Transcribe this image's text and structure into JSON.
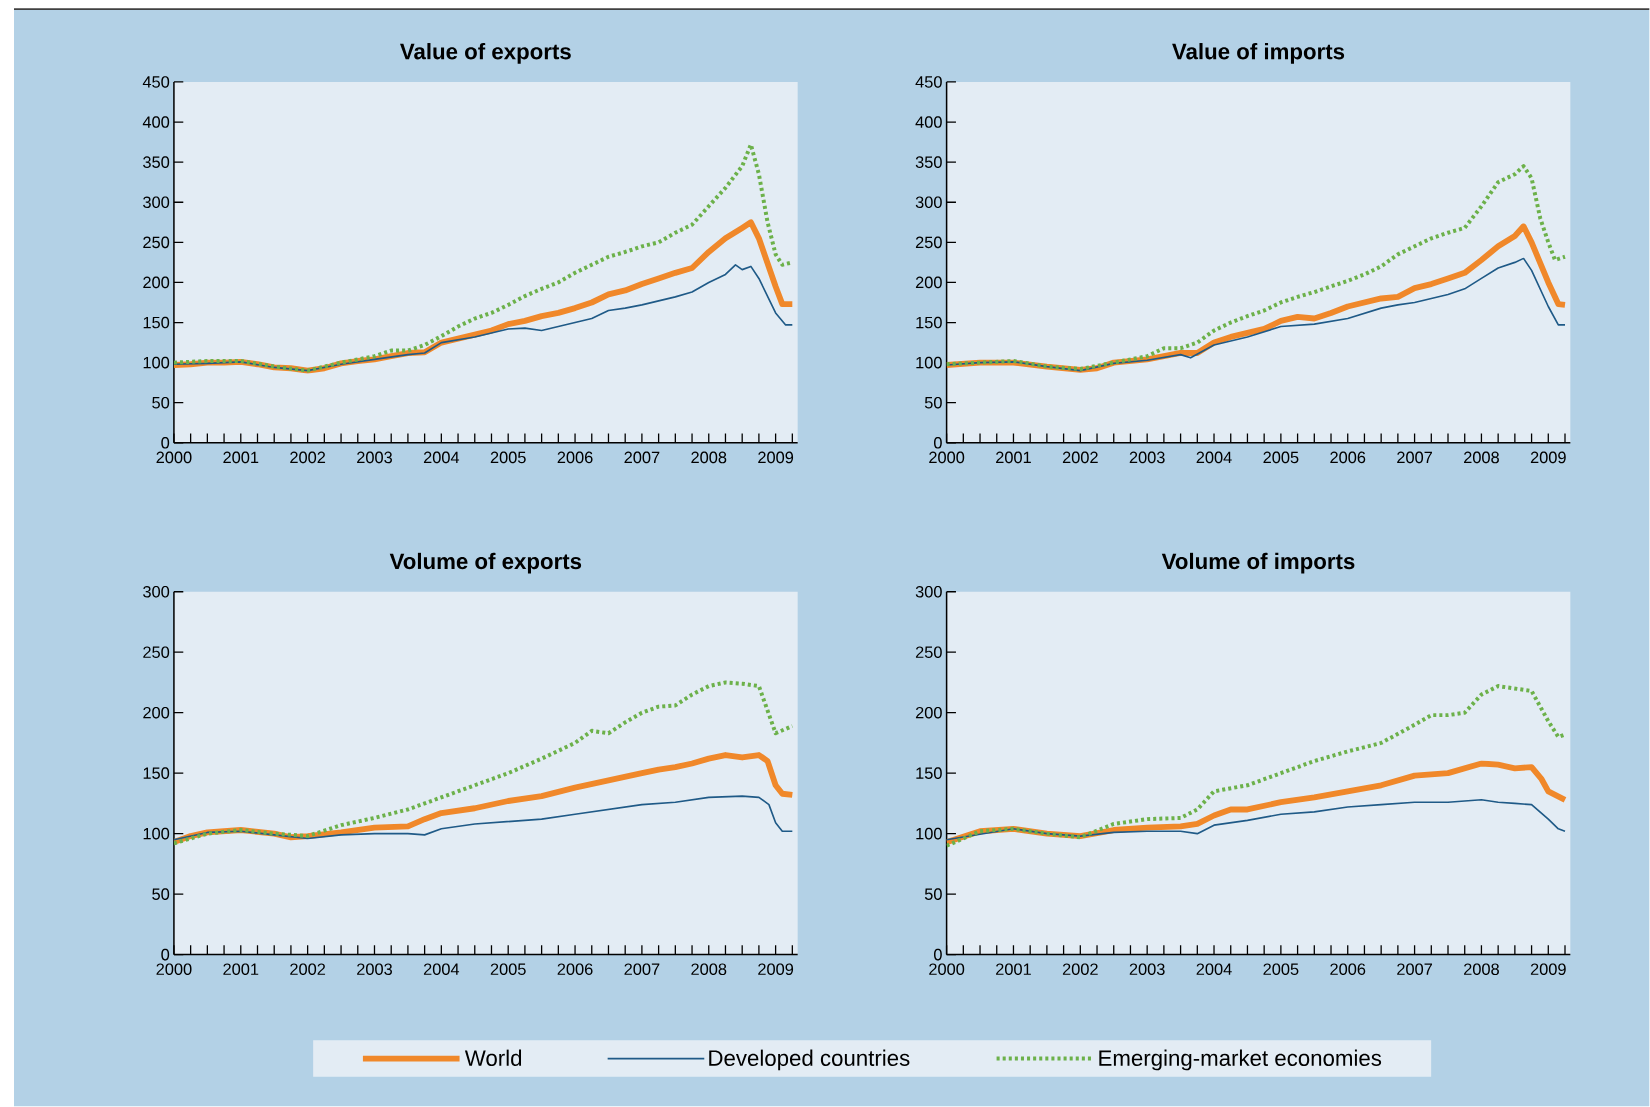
{
  "chart_data": [
    {
      "type": "line",
      "title": "Value of exports",
      "legend": "bottom",
      "xlim": [
        2000,
        2009.33
      ],
      "ylim": [
        0,
        450
      ],
      "yticks": [
        0,
        50,
        100,
        150,
        200,
        250,
        300,
        350,
        400,
        450
      ],
      "xticks": [
        2000,
        {
          "value": 2000.25,
          "label": null
        },
        {
          "value": 2000.5,
          "label": null
        },
        {
          "value": 2000.75,
          "label": null
        },
        2001,
        {
          "value": 2001.25,
          "label": null
        },
        {
          "value": 2001.5,
          "label": null
        },
        {
          "value": 2001.75,
          "label": null
        },
        2002,
        {
          "value": 2002.25,
          "label": null
        },
        {
          "value": 2002.5,
          "label": null
        },
        {
          "value": 2002.75,
          "label": null
        },
        2003,
        {
          "value": 2003.25,
          "label": null
        },
        {
          "value": 2003.5,
          "label": null
        },
        {
          "value": 2003.75,
          "label": null
        },
        2004,
        {
          "value": 2004.25,
          "label": null
        },
        {
          "value": 2004.5,
          "label": null
        },
        {
          "value": 2004.75,
          "label": null
        },
        2005,
        {
          "value": 2005.25,
          "label": null
        },
        {
          "value": 2005.5,
          "label": null
        },
        {
          "value": 2005.75,
          "label": null
        },
        2006,
        {
          "value": 2006.25,
          "label": null
        },
        {
          "value": 2006.5,
          "label": null
        },
        {
          "value": 2006.75,
          "label": null
        },
        2007,
        {
          "value": 2007.25,
          "label": null
        },
        {
          "value": 2007.5,
          "label": null
        },
        {
          "value": 2007.75,
          "label": null
        },
        2008,
        {
          "value": 2008.25,
          "label": null
        },
        {
          "value": 2008.5,
          "label": null
        },
        {
          "value": 2008.75,
          "label": null
        },
        2009,
        {
          "value": 2009.25,
          "label": null
        }
      ],
      "series": [
        {
          "name": "World",
          "color": "#f0882a",
          "line_style": "solid",
          "x": [
            2000,
            2000.25,
            2000.5,
            2000.75,
            2001,
            2001.25,
            2001.5,
            2001.75,
            2002,
            2002.25,
            2002.5,
            2002.75,
            2003,
            2003.25,
            2003.5,
            2003.75,
            2004,
            2004.25,
            2004.5,
            2004.75,
            2005,
            2005.25,
            2005.5,
            2005.75,
            2006,
            2006.25,
            2006.5,
            2006.75,
            2007,
            2007.25,
            2007.5,
            2007.75,
            2008,
            2008.25,
            2008.5,
            2008.63,
            2008.75,
            2009,
            2009.1,
            2009.25
          ],
          "values": [
            97,
            98,
            100,
            100,
            101,
            98,
            94,
            93,
            90,
            93,
            99,
            102,
            104,
            108,
            112,
            113,
            125,
            130,
            135,
            140,
            148,
            152,
            158,
            162,
            168,
            175,
            185,
            190,
            198,
            205,
            212,
            218,
            238,
            255,
            268,
            275,
            255,
            195,
            173,
            173
          ]
        },
        {
          "name": "Developed countries",
          "color": "#1f5a87",
          "line_style": "solid",
          "x": [
            2000,
            2000.5,
            2001,
            2001.5,
            2002,
            2002.5,
            2003,
            2003.5,
            2003.75,
            2004,
            2004.5,
            2005,
            2005.25,
            2005.5,
            2005.75,
            2006,
            2006.25,
            2006.5,
            2006.75,
            2007,
            2007.25,
            2007.5,
            2007.75,
            2008,
            2008.25,
            2008.4,
            2008.5,
            2008.63,
            2008.75,
            2009,
            2009.15,
            2009.25
          ],
          "values": [
            98,
            99,
            101,
            94,
            90,
            98,
            104,
            110,
            112,
            125,
            132,
            142,
            143,
            140,
            145,
            150,
            155,
            165,
            168,
            172,
            177,
            182,
            188,
            200,
            210,
            222,
            216,
            220,
            205,
            162,
            147,
            147
          ]
        },
        {
          "name": "Emerging-market economies",
          "color": "#6cb14a",
          "line_style": "dotted",
          "x": [
            2000,
            2000.5,
            2001,
            2001.5,
            2002,
            2002.5,
            2003,
            2003.25,
            2003.5,
            2003.75,
            2004,
            2004.25,
            2004.5,
            2004.75,
            2005,
            2005.25,
            2005.5,
            2005.75,
            2006,
            2006.25,
            2006.5,
            2006.75,
            2007,
            2007.25,
            2007.5,
            2007.75,
            2008,
            2008.25,
            2008.5,
            2008.63,
            2008.75,
            2008.88,
            2009,
            2009.1,
            2009.25
          ],
          "values": [
            100,
            102,
            102,
            95,
            90,
            100,
            108,
            115,
            115,
            122,
            133,
            145,
            155,
            162,
            172,
            183,
            192,
            200,
            212,
            222,
            232,
            238,
            245,
            250,
            262,
            272,
            295,
            318,
            345,
            372,
            335,
            275,
            235,
            222,
            225
          ]
        }
      ]
    },
    {
      "type": "line",
      "title": "Value of imports",
      "xlim": [
        2000,
        2009.33
      ],
      "ylim": [
        0,
        450
      ],
      "yticks": [
        0,
        50,
        100,
        150,
        200,
        250,
        300,
        350,
        400,
        450
      ],
      "xticks": [
        2000,
        {
          "value": 2000.25,
          "label": null
        },
        {
          "value": 2000.5,
          "label": null
        },
        {
          "value": 2000.75,
          "label": null
        },
        2001,
        {
          "value": 2001.25,
          "label": null
        },
        {
          "value": 2001.5,
          "label": null
        },
        {
          "value": 2001.75,
          "label": null
        },
        2002,
        {
          "value": 2002.25,
          "label": null
        },
        {
          "value": 2002.5,
          "label": null
        },
        {
          "value": 2002.75,
          "label": null
        },
        2003,
        {
          "value": 2003.25,
          "label": null
        },
        {
          "value": 2003.5,
          "label": null
        },
        {
          "value": 2003.75,
          "label": null
        },
        2004,
        {
          "value": 2004.25,
          "label": null
        },
        {
          "value": 2004.5,
          "label": null
        },
        {
          "value": 2004.75,
          "label": null
        },
        2005,
        {
          "value": 2005.25,
          "label": null
        },
        {
          "value": 2005.5,
          "label": null
        },
        {
          "value": 2005.75,
          "label": null
        },
        2006,
        {
          "value": 2006.25,
          "label": null
        },
        {
          "value": 2006.5,
          "label": null
        },
        {
          "value": 2006.75,
          "label": null
        },
        2007,
        {
          "value": 2007.25,
          "label": null
        },
        {
          "value": 2007.5,
          "label": null
        },
        {
          "value": 2007.75,
          "label": null
        },
        2008,
        {
          "value": 2008.25,
          "label": null
        },
        {
          "value": 2008.5,
          "label": null
        },
        {
          "value": 2008.75,
          "label": null
        },
        2009,
        {
          "value": 2009.25,
          "label": null
        }
      ],
      "series": [
        {
          "color": "#f0882a",
          "line_style": "solid",
          "x": [
            2000,
            2000.5,
            2001,
            2001.5,
            2002,
            2002.25,
            2002.5,
            2003,
            2003.5,
            2003.75,
            2004,
            2004.25,
            2004.5,
            2004.75,
            2005,
            2005.25,
            2005.5,
            2005.75,
            2006,
            2006.25,
            2006.5,
            2006.75,
            2007,
            2007.25,
            2007.5,
            2007.75,
            2008,
            2008.25,
            2008.5,
            2008.63,
            2008.75,
            2009,
            2009.15,
            2009.25
          ],
          "values": [
            97,
            100,
            100,
            95,
            91,
            93,
            100,
            104,
            112,
            112,
            125,
            132,
            137,
            142,
            152,
            157,
            155,
            162,
            170,
            175,
            180,
            182,
            193,
            198,
            205,
            212,
            228,
            245,
            258,
            270,
            250,
            200,
            173,
            172
          ]
        },
        {
          "color": "#1f5a87",
          "line_style": "solid",
          "x": [
            2000,
            2000.5,
            2001,
            2001.5,
            2002,
            2002.5,
            2003,
            2003.5,
            2003.65,
            2004,
            2004.5,
            2005,
            2005.5,
            2006,
            2006.5,
            2006.75,
            2007,
            2007.5,
            2007.75,
            2008,
            2008.25,
            2008.5,
            2008.63,
            2008.75,
            2009,
            2009.15,
            2009.25
          ],
          "values": [
            97,
            100,
            101,
            95,
            90,
            99,
            103,
            110,
            106,
            122,
            132,
            145,
            148,
            155,
            168,
            172,
            175,
            185,
            192,
            205,
            218,
            225,
            230,
            215,
            170,
            147,
            147
          ]
        },
        {
          "color": "#6cb14a",
          "line_style": "dotted",
          "x": [
            2000,
            2001,
            2001.5,
            2002,
            2002.5,
            2003,
            2003.25,
            2003.5,
            2003.75,
            2004,
            2004.25,
            2004.5,
            2004.75,
            2005,
            2005.25,
            2005.5,
            2005.75,
            2006,
            2006.25,
            2006.5,
            2006.75,
            2007,
            2007.25,
            2007.5,
            2007.75,
            2008,
            2008.25,
            2008.5,
            2008.63,
            2008.75,
            2008.88,
            2009,
            2009.1,
            2009.25
          ],
          "values": [
            98,
            102,
            95,
            92,
            100,
            108,
            118,
            118,
            125,
            140,
            150,
            158,
            165,
            175,
            182,
            188,
            195,
            202,
            210,
            220,
            235,
            245,
            255,
            262,
            268,
            295,
            325,
            335,
            345,
            330,
            280,
            250,
            228,
            232
          ]
        }
      ]
    },
    {
      "type": "line",
      "title": "Volume of exports",
      "xlim": [
        2000,
        2009.33
      ],
      "ylim": [
        0,
        300
      ],
      "yticks": [
        0,
        50,
        100,
        150,
        200,
        250,
        300
      ],
      "xticks": [
        2000,
        {
          "value": 2000.25,
          "label": null
        },
        {
          "value": 2000.5,
          "label": null
        },
        {
          "value": 2000.75,
          "label": null
        },
        2001,
        {
          "value": 2001.25,
          "label": null
        },
        {
          "value": 2001.5,
          "label": null
        },
        {
          "value": 2001.75,
          "label": null
        },
        2002,
        {
          "value": 2002.25,
          "label": null
        },
        {
          "value": 2002.5,
          "label": null
        },
        {
          "value": 2002.75,
          "label": null
        },
        2003,
        {
          "value": 2003.25,
          "label": null
        },
        {
          "value": 2003.5,
          "label": null
        },
        {
          "value": 2003.75,
          "label": null
        },
        2004,
        {
          "value": 2004.25,
          "label": null
        },
        {
          "value": 2004.5,
          "label": null
        },
        {
          "value": 2004.75,
          "label": null
        },
        2005,
        {
          "value": 2005.25,
          "label": null
        },
        {
          "value": 2005.5,
          "label": null
        },
        {
          "value": 2005.75,
          "label": null
        },
        2006,
        {
          "value": 2006.25,
          "label": null
        },
        {
          "value": 2006.5,
          "label": null
        },
        {
          "value": 2006.75,
          "label": null
        },
        2007,
        {
          "value": 2007.25,
          "label": null
        },
        {
          "value": 2007.5,
          "label": null
        },
        {
          "value": 2007.75,
          "label": null
        },
        2008,
        {
          "value": 2008.25,
          "label": null
        },
        {
          "value": 2008.5,
          "label": null
        },
        {
          "value": 2008.75,
          "label": null
        },
        2009,
        {
          "value": 2009.25,
          "label": null
        }
      ],
      "series": [
        {
          "color": "#f0882a",
          "line_style": "solid",
          "x": [
            2000,
            2000.25,
            2000.5,
            2001,
            2001.5,
            2001.75,
            2002,
            2002.5,
            2003,
            2003.5,
            2003.75,
            2004,
            2004.5,
            2005,
            2005.5,
            2006,
            2006.5,
            2007,
            2007.25,
            2007.5,
            2007.75,
            2008,
            2008.25,
            2008.5,
            2008.75,
            2008.88,
            2009,
            2009.1,
            2009.25
          ],
          "values": [
            93,
            98,
            101,
            103,
            100,
            97,
            98,
            101,
            105,
            106,
            112,
            117,
            121,
            127,
            131,
            138,
            144,
            150,
            153,
            155,
            158,
            162,
            165,
            163,
            165,
            160,
            140,
            133,
            132
          ]
        },
        {
          "color": "#1f5a87",
          "line_style": "solid",
          "x": [
            2000,
            2000.5,
            2001,
            2001.5,
            2002,
            2002.5,
            2003,
            2003.5,
            2003.75,
            2004,
            2004.5,
            2005,
            2005.5,
            2006,
            2006.5,
            2007,
            2007.5,
            2008,
            2008.5,
            2008.75,
            2008.9,
            2009,
            2009.1,
            2009.25
          ],
          "values": [
            95,
            101,
            102,
            99,
            96,
            99,
            100,
            100,
            99,
            104,
            108,
            110,
            112,
            116,
            120,
            124,
            126,
            130,
            131,
            130,
            124,
            109,
            102,
            102
          ]
        },
        {
          "color": "#6cb14a",
          "line_style": "dotted",
          "x": [
            2000,
            2000.5,
            2001,
            2001.5,
            2002,
            2002.5,
            2003,
            2003.5,
            2004,
            2004.5,
            2005,
            2005.5,
            2006,
            2006.25,
            2006.5,
            2006.75,
            2007,
            2007.25,
            2007.5,
            2007.75,
            2008,
            2008.25,
            2008.5,
            2008.75,
            2009,
            2009.25
          ],
          "values": [
            92,
            100,
            103,
            100,
            98,
            107,
            113,
            120,
            130,
            140,
            150,
            162,
            175,
            185,
            183,
            192,
            200,
            205,
            206,
            215,
            222,
            225,
            224,
            222,
            183,
            189
          ]
        }
      ]
    },
    {
      "type": "line",
      "title": "Volume of imports",
      "xlim": [
        2000,
        2009.33
      ],
      "ylim": [
        0,
        300
      ],
      "yticks": [
        0,
        50,
        100,
        150,
        200,
        250,
        300
      ],
      "xticks": [
        2000,
        {
          "value": 2000.25,
          "label": null
        },
        {
          "value": 2000.5,
          "label": null
        },
        {
          "value": 2000.75,
          "label": null
        },
        2001,
        {
          "value": 2001.25,
          "label": null
        },
        {
          "value": 2001.5,
          "label": null
        },
        {
          "value": 2001.75,
          "label": null
        },
        2002,
        {
          "value": 2002.25,
          "label": null
        },
        {
          "value": 2002.5,
          "label": null
        },
        {
          "value": 2002.75,
          "label": null
        },
        2003,
        {
          "value": 2003.25,
          "label": null
        },
        {
          "value": 2003.5,
          "label": null
        },
        {
          "value": 2003.75,
          "label": null
        },
        2004,
        {
          "value": 2004.25,
          "label": null
        },
        {
          "value": 2004.5,
          "label": null
        },
        {
          "value": 2004.75,
          "label": null
        },
        2005,
        {
          "value": 2005.25,
          "label": null
        },
        {
          "value": 2005.5,
          "label": null
        },
        {
          "value": 2005.75,
          "label": null
        },
        2006,
        {
          "value": 2006.25,
          "label": null
        },
        {
          "value": 2006.5,
          "label": null
        },
        {
          "value": 2006.75,
          "label": null
        },
        2007,
        {
          "value": 2007.25,
          "label": null
        },
        {
          "value": 2007.5,
          "label": null
        },
        {
          "value": 2007.75,
          "label": null
        },
        2008,
        {
          "value": 2008.25,
          "label": null
        },
        {
          "value": 2008.5,
          "label": null
        },
        {
          "value": 2008.75,
          "label": null
        },
        2009,
        {
          "value": 2009.25,
          "label": null
        }
      ],
      "series": [
        {
          "color": "#f0882a",
          "line_style": "solid",
          "x": [
            2000,
            2000.5,
            2001,
            2001.5,
            2002,
            2002.5,
            2003,
            2003.5,
            2003.75,
            2004,
            2004.25,
            2004.5,
            2005,
            2005.5,
            2006,
            2006.5,
            2007,
            2007.5,
            2008,
            2008.25,
            2008.5,
            2008.75,
            2008.9,
            2009,
            2009.25
          ],
          "values": [
            93,
            102,
            104,
            100,
            98,
            103,
            105,
            106,
            108,
            115,
            120,
            120,
            126,
            130,
            135,
            140,
            148,
            150,
            158,
            157,
            154,
            155,
            145,
            135,
            128
          ]
        },
        {
          "color": "#1f5a87",
          "line_style": "solid",
          "x": [
            2000,
            2001,
            2001.5,
            2002,
            2002.5,
            2003,
            2003.5,
            2003.75,
            2004,
            2004.5,
            2005,
            2005.5,
            2006,
            2006.5,
            2007,
            2007.5,
            2008,
            2008.25,
            2008.5,
            2008.75,
            2009,
            2009.15,
            2009.25
          ],
          "values": [
            95,
            104,
            100,
            98,
            101,
            102,
            102,
            100,
            107,
            111,
            116,
            118,
            122,
            124,
            126,
            126,
            128,
            126,
            125,
            124,
            112,
            104,
            102
          ]
        },
        {
          "color": "#6cb14a",
          "line_style": "dotted",
          "x": [
            2000,
            2000.5,
            2001,
            2001.5,
            2002,
            2002.5,
            2003,
            2003.5,
            2003.75,
            2004,
            2004.5,
            2005,
            2005.5,
            2006,
            2006.5,
            2007,
            2007.25,
            2007.5,
            2007.75,
            2008,
            2008.25,
            2008.5,
            2008.75,
            2009,
            2009.15,
            2009.25
          ],
          "values": [
            90,
            102,
            104,
            100,
            97,
            108,
            112,
            113,
            120,
            135,
            140,
            150,
            160,
            168,
            175,
            190,
            198,
            198,
            200,
            215,
            222,
            220,
            218,
            193,
            180,
            182
          ]
        }
      ]
    }
  ]
}
